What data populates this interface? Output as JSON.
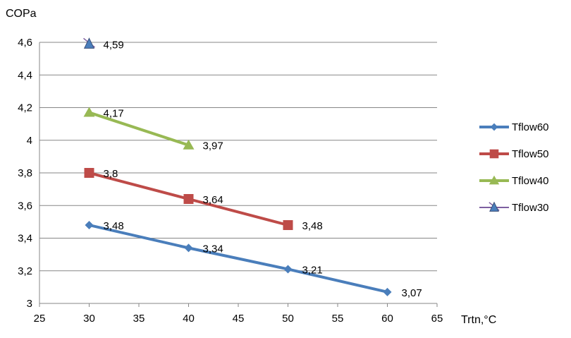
{
  "chart_data": {
    "type": "line",
    "title": "",
    "ylabel": "COPa",
    "xlabel": "Trtn,°C",
    "xlim": [
      25,
      65
    ],
    "ylim": [
      3,
      4.6
    ],
    "x_ticks": [
      25,
      30,
      35,
      40,
      45,
      50,
      55,
      60,
      65
    ],
    "y_ticks": [
      3,
      3.2,
      3.4,
      3.6,
      3.8,
      4,
      4.2,
      4.4,
      4.6
    ],
    "y_tick_labels": [
      "3",
      "3,2",
      "3,4",
      "3,6",
      "3,8",
      "4",
      "4,2",
      "4,4",
      "4,6"
    ],
    "grid": "horizontal",
    "legend_position": "right",
    "series": [
      {
        "name": "Tflow60",
        "color": "#4a7ebb",
        "marker": "diamond",
        "x": [
          30,
          40,
          50,
          60
        ],
        "y": [
          3.48,
          3.34,
          3.21,
          3.07
        ],
        "labels": [
          "3,48",
          "3,34",
          "3,21",
          "3,07"
        ]
      },
      {
        "name": "Tflow50",
        "color": "#be4b48",
        "marker": "square",
        "x": [
          30,
          40,
          50
        ],
        "y": [
          3.8,
          3.64,
          3.48
        ],
        "labels": [
          "3,8",
          "3,64",
          "3,48"
        ]
      },
      {
        "name": "Tflow40",
        "color": "#98b954",
        "marker": "triangle",
        "x": [
          30,
          40
        ],
        "y": [
          4.17,
          3.97
        ],
        "labels": [
          "4,17",
          "3,97"
        ]
      },
      {
        "name": "Tflow30",
        "color": "#7d5fa0",
        "marker": "triangle-cross",
        "x": [
          30
        ],
        "y": [
          4.59
        ],
        "labels": [
          "4,59"
        ]
      }
    ]
  }
}
